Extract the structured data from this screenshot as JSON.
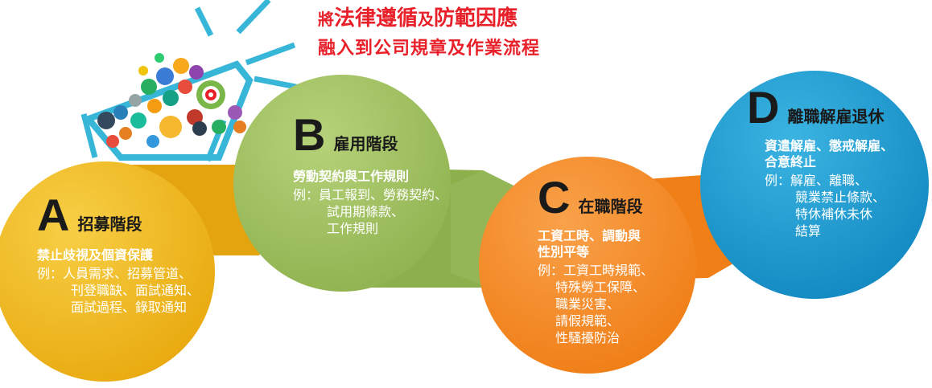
{
  "headline": {
    "line1_prefix": "將",
    "line1_main": "法律遵循",
    "line1_join": "及",
    "line1_end": "防範因應",
    "line2": "融入到公司規章及作業流程"
  },
  "stages": [
    {
      "letter": "A",
      "title": "招募階段",
      "focus": [
        "禁止歧視及個資保護"
      ],
      "examples": [
        "例：人員需求、招募管道、",
        "刊登職缺、面試通知、",
        "面試過程、錄取通知"
      ]
    },
    {
      "letter": "B",
      "title": "雇用階段",
      "focus": [
        "勞動契約與工作規則"
      ],
      "examples": [
        "例：員工報到、勞務契約、",
        "試用期條款、",
        "工作規則"
      ]
    },
    {
      "letter": "C",
      "title": "在職階段",
      "focus": [
        "工資工時、調動與",
        "性別平等"
      ],
      "examples": [
        "例：工資工時規範、",
        "特殊勞工保障、",
        "職業災害、",
        "請假規範、",
        "性騷擾防治"
      ]
    },
    {
      "letter": "D",
      "title": "離職解雇退休",
      "focus": [
        "資遣解雇、懲戒解雇、",
        "合意終止"
      ],
      "examples": [
        "例：解雇、離職、",
        "競業禁止條款、",
        "特休補休未休",
        "結算"
      ]
    }
  ],
  "colors": {
    "headline": "#e8202a",
    "stage_a": "#f0b51c",
    "stage_b": "#9cbd5b",
    "stage_c": "#f48a22",
    "stage_d": "#199bd1",
    "megaphone": "#38b6d8"
  },
  "icons": [
    "megaphone-icon",
    "target-icon",
    "thumbs-up-icon",
    "chart-icon",
    "shopping-cart-icon",
    "globe-icon"
  ]
}
